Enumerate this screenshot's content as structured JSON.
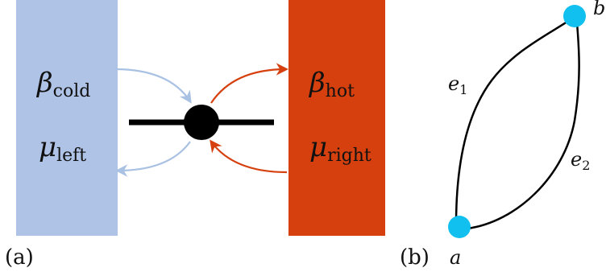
{
  "panel_a": {
    "label": "(a)",
    "left_reservoir": {
      "color": "#aec3e6",
      "beta_symbol": "β",
      "beta_subscript": "cold",
      "mu_symbol": "μ",
      "mu_subscript": "left"
    },
    "right_reservoir": {
      "color": "#d5400e",
      "beta_symbol": "β",
      "beta_subscript": "hot",
      "mu_symbol": "μ",
      "mu_subscript": "right"
    },
    "dot_color": "#000000",
    "left_arrow_color": "#a9c1e2",
    "right_arrow_color": "#d5400e"
  },
  "panel_b": {
    "label": "(b)",
    "node_color": "#12c0f0",
    "nodes": {
      "a": "a",
      "b": "b"
    },
    "edges": [
      {
        "symbol": "e",
        "subscript": "1"
      },
      {
        "symbol": "e",
        "subscript": "2"
      }
    ]
  }
}
